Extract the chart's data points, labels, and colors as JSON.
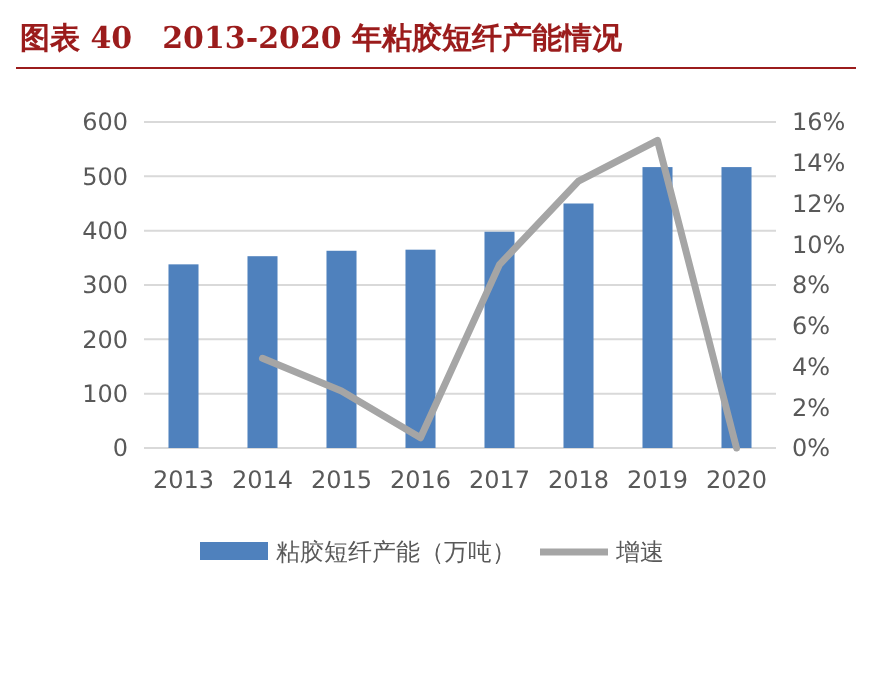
{
  "chart_data": {
    "type": "bar",
    "title": "图表 40　2013-2020 年粘胶短纤产能情况",
    "categories": [
      "2013",
      "2014",
      "2015",
      "2016",
      "2017",
      "2018",
      "2019",
      "2020"
    ],
    "series": [
      {
        "name": "粘胶短纤产能（万吨）",
        "color": "#4f81bd",
        "values": [
          338,
          353,
          363,
          365,
          398,
          450,
          517,
          517
        ]
      },
      {
        "name": "增速",
        "type": "line",
        "axis": "y2",
        "color": "#a5a5a5",
        "values": [
          null,
          4.4,
          2.8,
          0.5,
          9.0,
          13.1,
          15.1,
          0
        ]
      }
    ],
    "ylim": [
      0,
      600
    ],
    "yticks": [
      0,
      100,
      200,
      300,
      400,
      500,
      600
    ],
    "y2lim": [
      0,
      16
    ],
    "y2ticks": [
      {
        "value": 0,
        "label": "0%"
      },
      {
        "value": 2,
        "label": "2%"
      },
      {
        "value": 4,
        "label": "4%"
      },
      {
        "value": 6,
        "label": "6%"
      },
      {
        "value": 8,
        "label": "8%"
      },
      {
        "value": 10,
        "label": "10%"
      },
      {
        "value": 12,
        "label": "12%"
      },
      {
        "value": 14,
        "label": "14%"
      },
      {
        "value": 16,
        "label": "16%"
      }
    ],
    "grid": "y",
    "legend": "bottom",
    "marker": "none",
    "line_style": "solid"
  }
}
